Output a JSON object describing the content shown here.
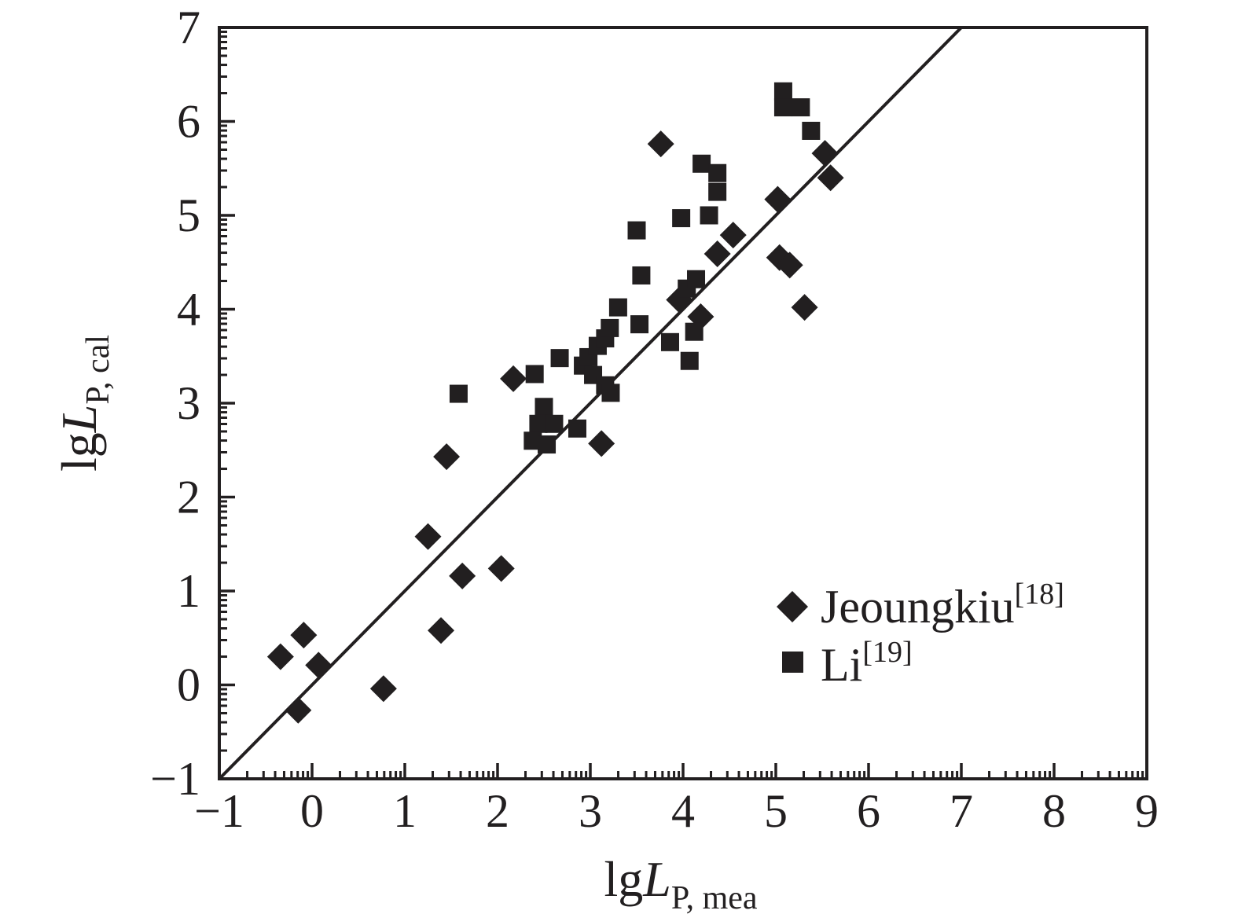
{
  "figure": {
    "background": "#ffffff",
    "ink_color": "#221f20"
  },
  "chart_data": {
    "type": "scatter",
    "title": "",
    "xlabel": {
      "prefix": "lg",
      "symbol": "L",
      "subscript": "P, mea"
    },
    "ylabel": {
      "prefix": "lg",
      "symbol": "L",
      "subscript": "P, cal"
    },
    "xlim": [
      -1,
      9
    ],
    "ylim": [
      -1,
      7
    ],
    "x_ticks": [
      -1,
      0,
      1,
      2,
      3,
      4,
      5,
      6,
      7,
      8,
      9
    ],
    "x_tick_labels": [
      "−1",
      "0",
      "1",
      "2",
      "3",
      "4",
      "5",
      "6",
      "7",
      "8",
      "9"
    ],
    "y_ticks": [
      -1,
      0,
      1,
      2,
      3,
      4,
      5,
      6,
      7
    ],
    "y_tick_labels": [
      "−1",
      "0",
      "1",
      "2",
      "3",
      "4",
      "5",
      "6",
      "7"
    ],
    "minor_ticks": "logarithmic-decade-subdivisions",
    "grid": false,
    "identity_line": {
      "from": [
        -1,
        -1
      ],
      "to": [
        7.6,
        7.6
      ]
    },
    "legend_position": "lower-right",
    "series": [
      {
        "name": "Jeoungkiu",
        "ref": "[18]",
        "marker": "diamond",
        "color": "#221f20",
        "points": [
          [
            -0.34,
            0.3
          ],
          [
            -0.15,
            -0.27
          ],
          [
            -0.09,
            0.53
          ],
          [
            0.07,
            0.21
          ],
          [
            0.77,
            -0.04
          ],
          [
            1.25,
            1.58
          ],
          [
            1.39,
            0.58
          ],
          [
            1.45,
            2.43
          ],
          [
            1.62,
            1.16
          ],
          [
            2.04,
            1.24
          ],
          [
            2.17,
            3.26
          ],
          [
            3.12,
            2.57
          ],
          [
            3.76,
            5.76
          ],
          [
            3.96,
            4.1
          ],
          [
            4.19,
            3.92
          ],
          [
            4.37,
            4.59
          ],
          [
            4.54,
            4.79
          ],
          [
            5.02,
            5.17
          ],
          [
            5.04,
            4.55
          ],
          [
            5.15,
            4.47
          ],
          [
            5.31,
            4.02
          ],
          [
            5.53,
            5.66
          ],
          [
            5.59,
            5.4
          ]
        ]
      },
      {
        "name": "Li",
        "ref": "[19]",
        "marker": "square",
        "color": "#221f20",
        "points": [
          [
            1.58,
            3.1
          ],
          [
            2.4,
            3.31
          ],
          [
            2.67,
            3.48
          ],
          [
            2.5,
            2.96
          ],
          [
            2.44,
            2.78
          ],
          [
            2.61,
            2.78
          ],
          [
            2.38,
            2.6
          ],
          [
            2.53,
            2.56
          ],
          [
            2.86,
            2.73
          ],
          [
            2.92,
            3.4
          ],
          [
            2.98,
            3.49
          ],
          [
            3.08,
            3.61
          ],
          [
            3.16,
            3.69
          ],
          [
            3.21,
            3.8
          ],
          [
            3.03,
            3.3
          ],
          [
            3.16,
            3.19
          ],
          [
            3.22,
            3.11
          ],
          [
            3.3,
            4.02
          ],
          [
            3.53,
            3.84
          ],
          [
            3.86,
            3.65
          ],
          [
            4.12,
            3.76
          ],
          [
            4.07,
            3.45
          ],
          [
            4.04,
            4.22
          ],
          [
            4.14,
            4.32
          ],
          [
            3.55,
            4.36
          ],
          [
            3.5,
            4.84
          ],
          [
            3.98,
            4.97
          ],
          [
            4.28,
            5.0
          ],
          [
            4.2,
            5.55
          ],
          [
            4.37,
            5.45
          ],
          [
            4.37,
            5.25
          ],
          [
            5.08,
            6.32
          ],
          [
            5.08,
            6.15
          ],
          [
            5.27,
            6.15
          ],
          [
            5.38,
            5.9
          ]
        ]
      }
    ]
  }
}
